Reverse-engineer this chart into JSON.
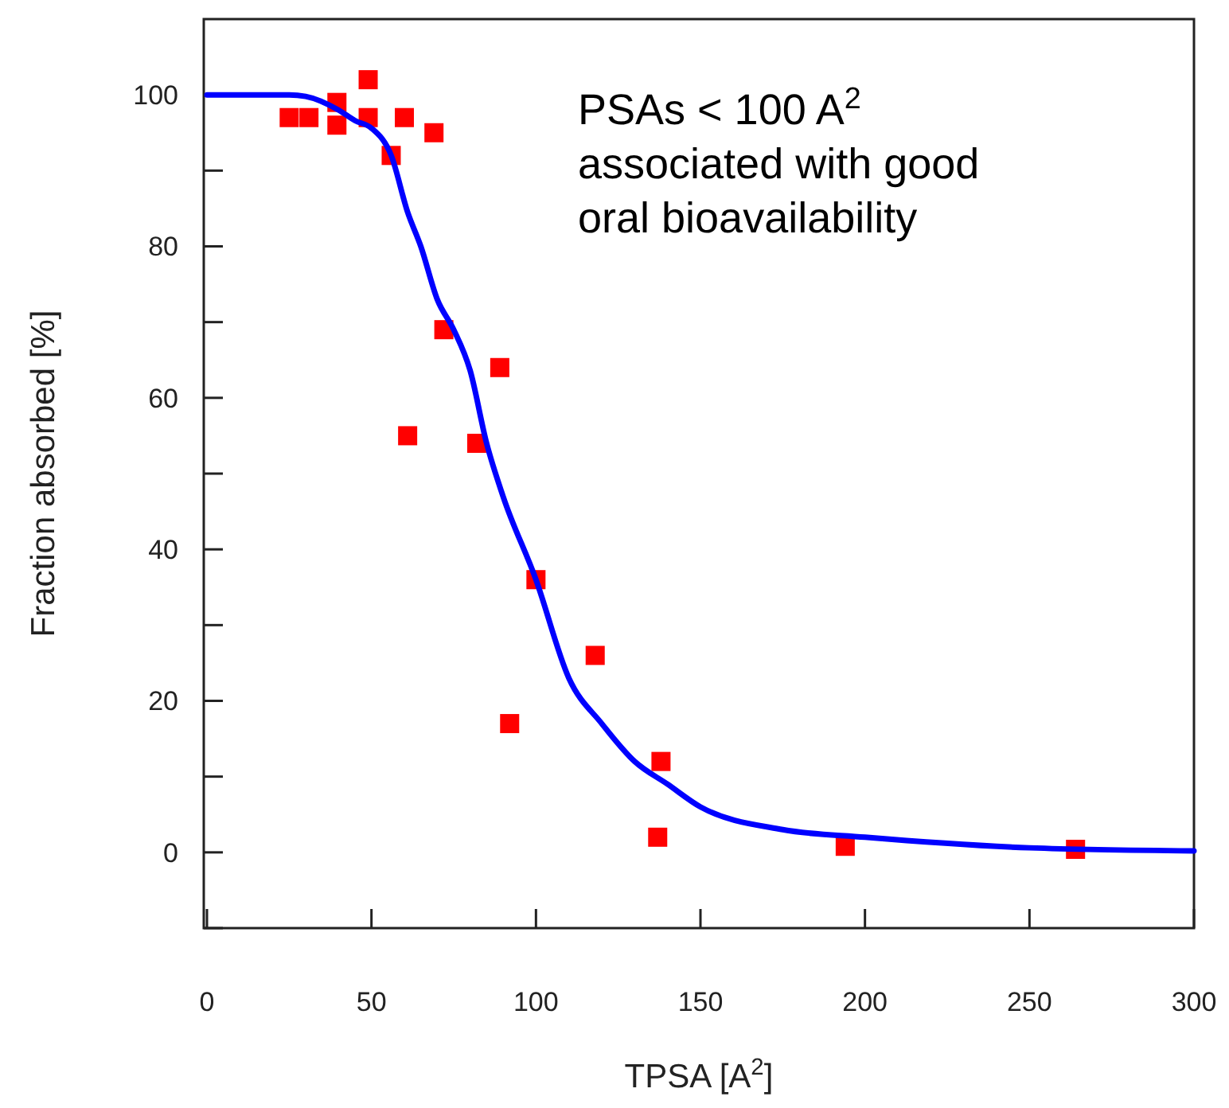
{
  "chart_data": {
    "type": "scatter",
    "xlabel": "TPSA [A$^{2}$]",
    "ylabel": "Fraction absorbed [%]",
    "annotations": [
      "PSAs < 100 A$^{2}$\nassociated with good\noral bioavailability"
    ],
    "xlim": [
      0,
      300
    ],
    "xticks": [
      0,
      50,
      100,
      150,
      200,
      250,
      300
    ],
    "ylim": [
      -10,
      110
    ],
    "yticks": [
      {
        "value": -10,
        "label": null
      },
      0,
      {
        "value": 10,
        "label": null
      },
      20,
      {
        "value": 30,
        "label": null
      },
      40,
      {
        "value": 50,
        "label": null
      },
      60,
      {
        "value": 70,
        "label": null
      },
      80,
      {
        "value": 90,
        "label": null
      },
      100
    ],
    "grid": false,
    "series": [
      {
        "marker": "square",
        "color": "#ff0000",
        "x": [
          25,
          31,
          39.5,
          39.5,
          49,
          49,
          60,
          69,
          56,
          72,
          89,
          61,
          82,
          100,
          118,
          92,
          138,
          137,
          194,
          264
        ],
        "values": [
          97,
          97,
          99,
          96,
          102,
          97,
          97,
          95,
          92,
          69,
          64,
          55,
          54,
          36,
          26,
          17,
          12,
          2,
          0.8,
          0.4
        ]
      },
      {
        "type": "line",
        "marker": "none",
        "line_style": "solid",
        "color": "#0000ff",
        "x": [
          0,
          25,
          30,
          40,
          45,
          50,
          56,
          61,
          65,
          70,
          75,
          80,
          85,
          90,
          100,
          110,
          120,
          130,
          140,
          150,
          175,
          200,
          250,
          300
        ],
        "values": [
          100,
          100,
          99.8,
          98,
          96.6,
          95.6,
          92,
          84.5,
          80,
          73,
          69,
          63.6,
          54,
          47,
          36,
          23,
          17,
          12,
          9,
          6,
          3,
          2,
          0.6,
          0.2
        ]
      }
    ]
  }
}
